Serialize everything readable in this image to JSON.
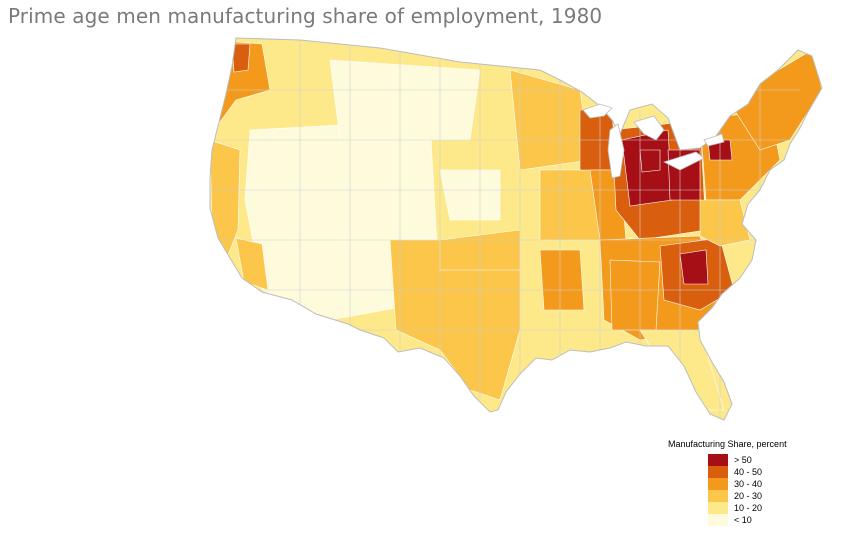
{
  "title": "Prime age men manufacturing share of employment, 1980",
  "legend": {
    "title": "Manufacturing Share, percent",
    "items": [
      {
        "label": "> 50",
        "color": "#a50f15"
      },
      {
        "label": "40 - 50",
        "color": "#d95f0e"
      },
      {
        "label": "30 - 40",
        "color": "#f39a1d"
      },
      {
        "label": "20 - 30",
        "color": "#fbc64a"
      },
      {
        "label": "10 - 20",
        "color": "#fde98a"
      },
      {
        "label": "< 10",
        "color": "#fefbdc"
      }
    ]
  },
  "colors": {
    "background": "#ffffff",
    "boundary": "#cfcfcf",
    "title_text": "#7a7a7a"
  }
}
